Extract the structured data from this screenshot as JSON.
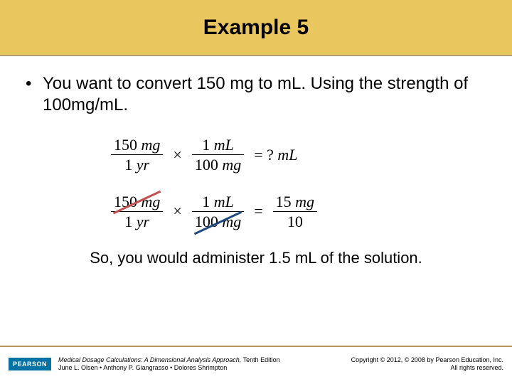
{
  "title": "Example 5",
  "bullet": "You want to convert 150 mg to mL. Using the strength of 100mg/mL.",
  "eq1": {
    "f1_num_val": "150",
    "f1_num_unit": "mg",
    "f1_den_val": "1",
    "f1_den_unit": "yr",
    "f2_num_val": "1",
    "f2_num_unit": "mL",
    "f2_den_val": "100",
    "f2_den_unit": "mg",
    "rhs": "= ?",
    "rhs_unit": "mL"
  },
  "eq2": {
    "f1_num_val": "150",
    "f1_num_unit": "mg",
    "f1_den_val": "1",
    "f1_den_unit": "yr",
    "f2_num_val": "1",
    "f2_num_unit": "mL",
    "f2_den_val": "100",
    "f2_den_unit": "mg",
    "r_num_val": "15",
    "r_num_unit": "mg",
    "r_den": "10"
  },
  "strike_colors": {
    "first": "#c0504d",
    "second": "#1f497d"
  },
  "conclusion": "So, you would administer 1.5 mL of the solution.",
  "footer": {
    "logo": "PEARSON",
    "book_title": "Medical Dosage Calculations: A Dimensional Analysis Approach,",
    "edition": " Tenth Edition",
    "authors": "June L. Olsen • Anthony P. Giangrasso • Dolores Shrimpton",
    "copyright_l1": "Copyright © 2012, © 2008 by Pearson Education, Inc.",
    "copyright_l2": "All rights reserved."
  },
  "colors": {
    "title_bg": "#eac65f",
    "footer_rule": "#b5975a",
    "logo_bg": "#0072a6"
  }
}
